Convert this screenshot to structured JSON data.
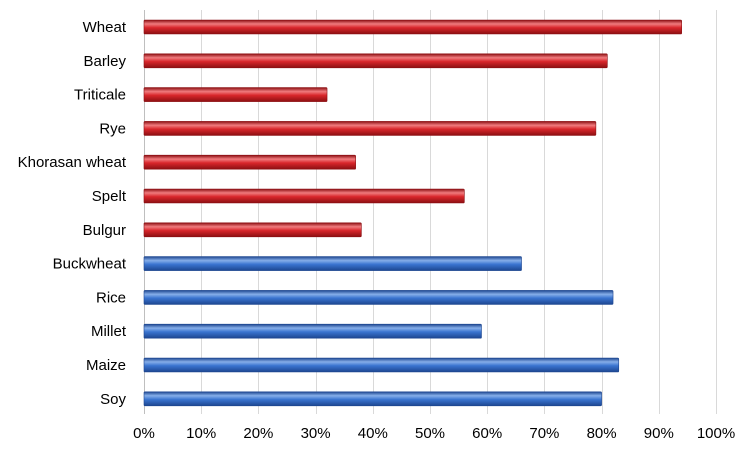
{
  "chart_data": {
    "type": "bar",
    "orientation": "horizontal",
    "categories": [
      "Wheat",
      "Barley",
      "Triticale",
      "Rye",
      "Khorasan wheat",
      "Spelt",
      "Bulgur",
      "Buckwheat",
      "Rice",
      "Millet",
      "Maize",
      "Soy"
    ],
    "values": [
      94,
      81,
      32,
      79,
      37,
      56,
      38,
      66,
      82,
      59,
      83,
      80
    ],
    "bar_colors": [
      "red",
      "red",
      "red",
      "red",
      "red",
      "red",
      "red",
      "blue",
      "blue",
      "blue",
      "blue",
      "blue"
    ],
    "xlim": [
      0,
      100
    ],
    "x_ticks": [
      "0%",
      "10%",
      "20%",
      "30%",
      "40%",
      "50%",
      "60%",
      "70%",
      "80%",
      "90%",
      "100%"
    ],
    "grid": "vertical",
    "title": "",
    "xlabel": "",
    "ylabel": "",
    "colors": {
      "red": "#d9262b",
      "red_dark": "#8c0f12",
      "red_light": "#f07b7e",
      "blue": "#3a74d0",
      "blue_dark": "#1d4690",
      "blue_light": "#86aee9",
      "grid": "#d9d9d9"
    }
  }
}
